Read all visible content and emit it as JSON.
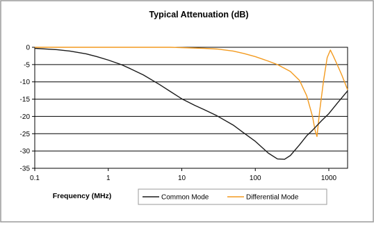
{
  "chart_data": {
    "type": "line",
    "title": "Typical Attenuation (dB)",
    "xlabel": "Frequency (MHz)",
    "ylabel": "",
    "x_scale": "log",
    "xlim": [
      0.1,
      1800
    ],
    "ylim": [
      -35,
      0
    ],
    "x_ticks": [
      0.1,
      1,
      10,
      100,
      1000
    ],
    "x_tick_labels": [
      "0.1",
      "1",
      "10",
      "100",
      "1000"
    ],
    "y_ticks": [
      0,
      -5,
      -10,
      -15,
      -20,
      -25,
      -30,
      -35
    ],
    "y_tick_labels": [
      "0",
      "-5",
      "-10",
      "-15",
      "-20",
      "-25",
      "-30",
      "-35"
    ],
    "grid": "horizontal",
    "legend_position": "bottom-center",
    "series": [
      {
        "name": "Common Mode",
        "color": "#1a1a1a",
        "points": [
          [
            0.1,
            -0.3
          ],
          [
            0.2,
            -0.7
          ],
          [
            0.3,
            -1.1
          ],
          [
            0.5,
            -1.9
          ],
          [
            0.7,
            -2.7
          ],
          [
            1,
            -3.7
          ],
          [
            1.5,
            -5.0
          ],
          [
            2,
            -6.2
          ],
          [
            3,
            -8.0
          ],
          [
            5,
            -10.8
          ],
          [
            7,
            -12.8
          ],
          [
            10,
            -14.9
          ],
          [
            15,
            -16.8
          ],
          [
            20,
            -18.0
          ],
          [
            30,
            -19.8
          ],
          [
            50,
            -22.5
          ],
          [
            70,
            -24.8
          ],
          [
            100,
            -27.2
          ],
          [
            150,
            -30.6
          ],
          [
            200,
            -32.3
          ],
          [
            250,
            -32.4
          ],
          [
            300,
            -31.3
          ],
          [
            400,
            -28.2
          ],
          [
            500,
            -25.6
          ],
          [
            600,
            -24.0
          ],
          [
            800,
            -21.2
          ],
          [
            1000,
            -19.2
          ],
          [
            1300,
            -16.2
          ],
          [
            1800,
            -12.6
          ]
        ]
      },
      {
        "name": "Differential Mode",
        "color": "#f39a1e",
        "points": [
          [
            0.1,
            0
          ],
          [
            1,
            0
          ],
          [
            7,
            0
          ],
          [
            10,
            -0.1
          ],
          [
            20,
            -0.3
          ],
          [
            30,
            -0.5
          ],
          [
            50,
            -1.1
          ],
          [
            70,
            -1.8
          ],
          [
            100,
            -2.7
          ],
          [
            150,
            -4.0
          ],
          [
            200,
            -5.0
          ],
          [
            300,
            -7.0
          ],
          [
            400,
            -9.6
          ],
          [
            500,
            -14.0
          ],
          [
            600,
            -20.0
          ],
          [
            650,
            -24.0
          ],
          [
            690,
            -25.8
          ],
          [
            750,
            -18.5
          ],
          [
            850,
            -9.5
          ],
          [
            950,
            -3.0
          ],
          [
            1050,
            -0.8
          ],
          [
            1150,
            -2.5
          ],
          [
            1300,
            -5.0
          ],
          [
            1500,
            -8.0
          ],
          [
            1800,
            -12.3
          ]
        ]
      }
    ]
  }
}
